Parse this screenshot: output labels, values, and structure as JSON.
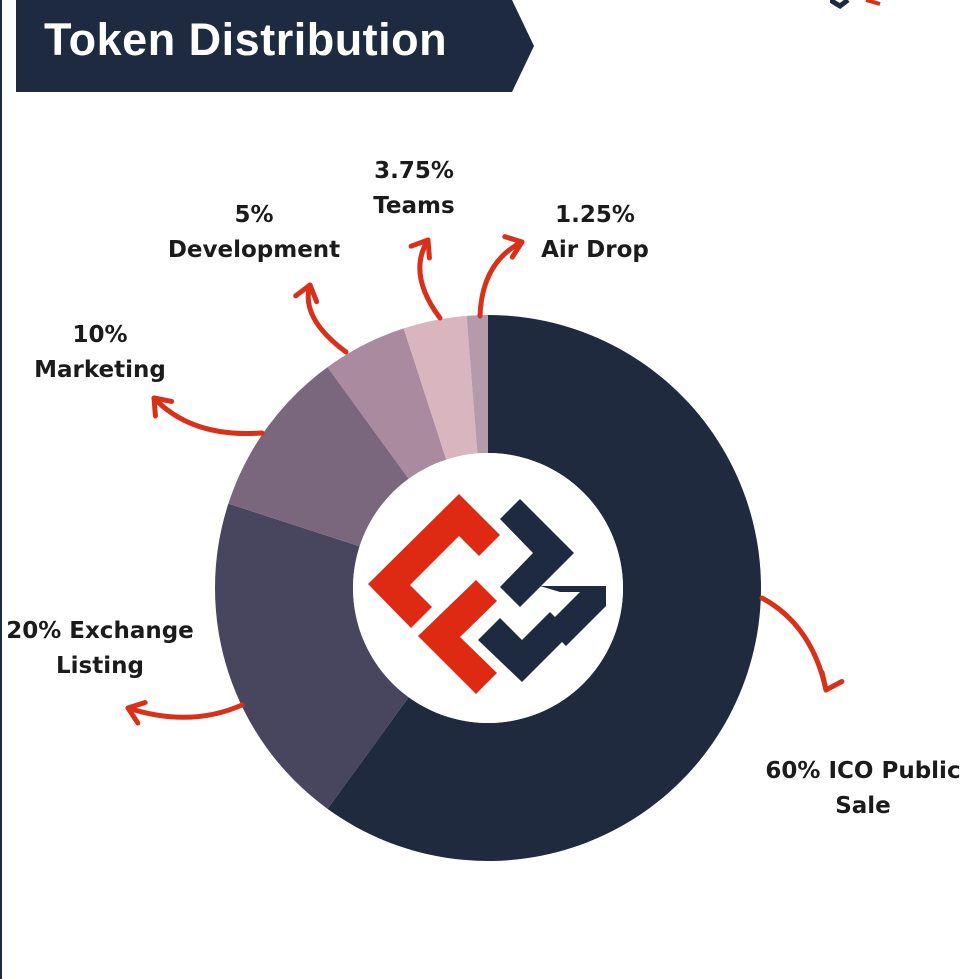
{
  "title": "Token Distribution",
  "colors": {
    "banner": "#1e2a3f",
    "arrow": "#d9301a",
    "logo_red": "#de2a12",
    "logo_navy": "#1e2a3f"
  },
  "chart_data": {
    "type": "pie",
    "title": "Token Distribution",
    "slices": [
      {
        "value": 60,
        "color": "#1f2a3f",
        "label_lines": [
          "60% ICO Public",
          "Sale"
        ]
      },
      {
        "value": 20,
        "color": "#48455e",
        "label_lines": [
          "20% Exchange",
          "Listing"
        ]
      },
      {
        "value": 10,
        "color": "#7a677e",
        "label_lines": [
          "10%",
          "Marketing"
        ]
      },
      {
        "value": 5,
        "color": "#a98a9e",
        "label_lines": [
          "5%",
          "Development"
        ]
      },
      {
        "value": 3.75,
        "color": "#d9b5bf",
        "label_lines": [
          "3.75%",
          "Teams"
        ]
      },
      {
        "value": 1.25,
        "color": "#b59aaa",
        "label_lines": [
          "1.25%",
          "Air Drop"
        ]
      }
    ]
  }
}
